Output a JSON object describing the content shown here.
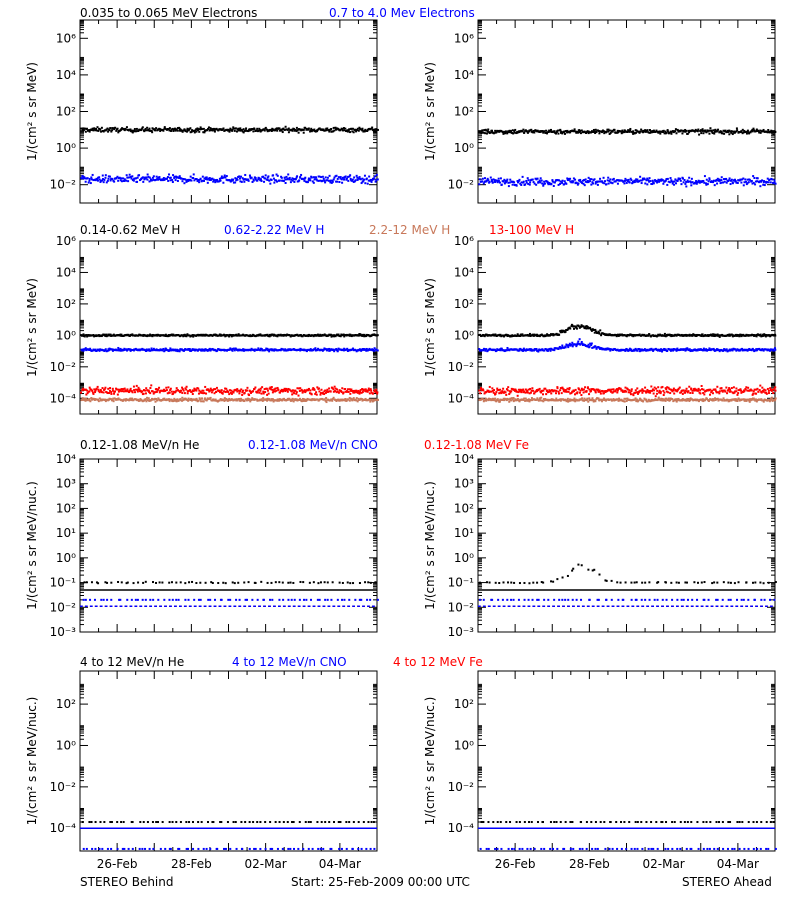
{
  "figure": {
    "footer_left": "STEREO Behind",
    "footer_center": "Start: 25-Feb-2009 00:00 UTC",
    "footer_right": "STEREO Ahead",
    "x_ticks": [
      "26-Feb",
      "28-Feb",
      "02-Mar",
      "04-Mar"
    ]
  },
  "colors": {
    "black": "#000000",
    "blue": "#0000ff",
    "salmon": "#c8785a",
    "red": "#ff0000"
  },
  "chart_data": [
    {
      "type": "scatter",
      "row": 0,
      "titles": [
        {
          "text": "0.035 to 0.065 MeV Electrons",
          "color": "#000000"
        },
        {
          "text": "0.7 to 4.0 Mev Electrons",
          "color": "#0000ff"
        }
      ],
      "ylabel": "1/(cm² s sr MeV)",
      "y_log": true,
      "ylim_exp": [
        -3,
        7
      ],
      "yticks": [
        "10⁻²",
        "10⁰",
        "10²",
        "10⁴",
        "10⁶"
      ],
      "ytick_exp": [
        -2,
        0,
        2,
        4,
        6
      ],
      "x_range_days": [
        0,
        8
      ],
      "panels": [
        {
          "spacecraft": "STEREO Behind",
          "series": [
            {
              "color": "#000000",
              "level": 10,
              "scatter_dex": 0.12
            },
            {
              "color": "#0000ff",
              "level": 0.02,
              "scatter_dex": 0.2
            }
          ]
        },
        {
          "spacecraft": "STEREO Ahead",
          "series": [
            {
              "color": "#000000",
              "level": 8,
              "scatter_dex": 0.12
            },
            {
              "color": "#0000ff",
              "level": 0.015,
              "scatter_dex": 0.2
            }
          ]
        }
      ]
    },
    {
      "type": "scatter",
      "row": 1,
      "titles": [
        {
          "text": "0.14-0.62 MeV H",
          "color": "#000000"
        },
        {
          "text": "0.62-2.22 MeV H",
          "color": "#0000ff"
        },
        {
          "text": "2.2-12 MeV H",
          "color": "#c8785a"
        },
        {
          "text": "13-100 MeV H",
          "color": "#ff0000"
        }
      ],
      "ylabel": "1/(cm² s sr MeV)",
      "y_log": true,
      "ylim_exp": [
        -5,
        6
      ],
      "yticks": [
        "10⁻⁴",
        "10⁻²",
        "10⁰",
        "10²",
        "10⁴",
        "10⁶"
      ],
      "ytick_exp": [
        -4,
        -2,
        0,
        2,
        4,
        6
      ],
      "x_range_days": [
        0,
        8
      ],
      "panels": [
        {
          "spacecraft": "STEREO Behind",
          "series": [
            {
              "color": "#000000",
              "level": 1.0,
              "scatter_dex": 0.06
            },
            {
              "color": "#0000ff",
              "level": 0.12,
              "scatter_dex": 0.08
            },
            {
              "color": "#ff0000",
              "level": 0.0003,
              "scatter_dex": 0.22
            },
            {
              "color": "#c8785a",
              "level": 8e-05,
              "scatter_dex": 0.1
            }
          ]
        },
        {
          "spacecraft": "STEREO Ahead",
          "series": [
            {
              "color": "#000000",
              "level": 1.0,
              "scatter_dex": 0.06,
              "bump": {
                "center_day": 2.7,
                "width_day": 0.45,
                "peak": 4
              }
            },
            {
              "color": "#0000ff",
              "level": 0.12,
              "scatter_dex": 0.08,
              "bump": {
                "center_day": 2.7,
                "width_day": 0.45,
                "peak": 0.3
              }
            },
            {
              "color": "#ff0000",
              "level": 0.0003,
              "scatter_dex": 0.22
            },
            {
              "color": "#c8785a",
              "level": 8e-05,
              "scatter_dex": 0.1
            }
          ]
        }
      ]
    },
    {
      "type": "scatter",
      "row": 2,
      "titles": [
        {
          "text": "0.12-1.08 MeV/n He",
          "color": "#000000"
        },
        {
          "text": "0.12-1.08 MeV/n CNO",
          "color": "#0000ff"
        },
        {
          "text": "0.12-1.08 MeV Fe",
          "color": "#ff0000"
        }
      ],
      "ylabel": "1/(cm² s sr MeV/nuc.)",
      "y_log": true,
      "ylim_exp": [
        -3,
        4
      ],
      "yticks": [
        "10⁻³",
        "10⁻²",
        "10⁻¹",
        "10⁰",
        "10¹",
        "10²",
        "10³",
        "10⁴"
      ],
      "ytick_exp": [
        -3,
        -2,
        -1,
        0,
        1,
        2,
        3,
        4
      ],
      "x_range_days": [
        0,
        8
      ],
      "panels": [
        {
          "spacecraft": "STEREO Behind",
          "series": [
            {
              "color": "#000000",
              "level": 0.1,
              "scatter_dex": 0.03,
              "sparse": true
            },
            {
              "color": "#000000",
              "level": 0.05,
              "scatter_dex": 0.0,
              "line": true
            },
            {
              "color": "#0000ff",
              "level": 0.02,
              "scatter_dex": 0.0,
              "sparse": true
            },
            {
              "color": "#ff0000",
              "level": 0.011,
              "scatter_dex": 0.0,
              "dashed": true
            },
            {
              "color": "#0000ff",
              "level": 0.011,
              "scatter_dex": 0.0,
              "dashed": true
            }
          ]
        },
        {
          "spacecraft": "STEREO Ahead",
          "series": [
            {
              "color": "#000000",
              "level": 0.1,
              "scatter_dex": 0.03,
              "sparse": true,
              "bump": {
                "center_day": 2.8,
                "width_day": 0.5,
                "peak": 0.5
              }
            },
            {
              "color": "#000000",
              "level": 0.05,
              "scatter_dex": 0.0,
              "line": true
            },
            {
              "color": "#0000ff",
              "level": 0.02,
              "scatter_dex": 0.0,
              "sparse": true
            },
            {
              "color": "#ff0000",
              "level": 0.011,
              "scatter_dex": 0.0,
              "dashed": true
            },
            {
              "color": "#0000ff",
              "level": 0.011,
              "scatter_dex": 0.0,
              "dashed": true
            }
          ]
        }
      ]
    },
    {
      "type": "scatter",
      "row": 3,
      "titles": [
        {
          "text": "4 to 12 MeV/n He",
          "color": "#000000"
        },
        {
          "text": "4 to 12 MeV/n CNO",
          "color": "#0000ff"
        },
        {
          "text": "4 to 12 MeV Fe",
          "color": "#ff0000"
        }
      ],
      "ylabel": "1/(cm² s sr MeV/nuc.)",
      "y_log": true,
      "ylim_exp": [
        -5.1,
        3.6
      ],
      "yticks": [
        "10⁻⁴",
        "10⁻²",
        "10⁰",
        "10²"
      ],
      "ytick_exp": [
        -4,
        -2,
        0,
        2
      ],
      "x_range_days": [
        0,
        8
      ],
      "panels": [
        {
          "spacecraft": "STEREO Behind",
          "series": [
            {
              "color": "#000000",
              "level": 0.0002,
              "scatter_dex": 0.0,
              "sparse": true
            },
            {
              "color": "#0000ff",
              "level": 0.0001,
              "scatter_dex": 0.0,
              "line": true
            },
            {
              "color": "#0000ff",
              "level": 1e-05,
              "scatter_dex": 0.0,
              "sparse": true
            }
          ]
        },
        {
          "spacecraft": "STEREO Ahead",
          "series": [
            {
              "color": "#000000",
              "level": 0.0002,
              "scatter_dex": 0.0,
              "sparse": true
            },
            {
              "color": "#0000ff",
              "level": 0.0001,
              "scatter_dex": 0.0,
              "line": true
            },
            {
              "color": "#0000ff",
              "level": 1e-05,
              "scatter_dex": 0.0,
              "sparse": true
            }
          ]
        }
      ]
    }
  ]
}
